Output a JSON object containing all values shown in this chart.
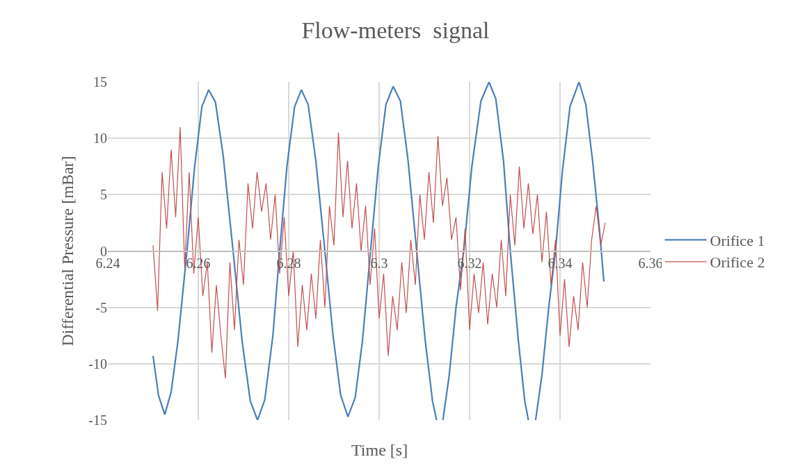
{
  "chart_data": {
    "type": "line",
    "title": "Flow-meters  signal",
    "xlabel": "Time [s]",
    "ylabel": "Differential Pressure [mBar]",
    "xlim": [
      6.24,
      6.36
    ],
    "xticks": [
      6.24,
      6.26,
      6.28,
      {
        "value": 6.3,
        "label": "6.3"
      },
      6.32,
      6.34,
      6.36
    ],
    "ylim": [
      -15,
      15
    ],
    "yticks": [
      -15,
      -10,
      -5,
      0,
      5,
      10,
      15
    ],
    "grid": true,
    "legend": "right",
    "marker": "none",
    "line_style": "solid",
    "series": [
      {
        "name": "Orifice 1",
        "color": "#4a7ebb",
        "x": [
          6.25,
          6.2512,
          6.2526,
          6.254,
          6.2555,
          6.2575,
          6.2592,
          6.2608,
          6.2623,
          6.2638,
          6.2655,
          6.2677,
          6.2697,
          6.2715,
          6.2731,
          6.2747,
          6.2765,
          6.278,
          6.2796,
          6.2813,
          6.2828,
          6.2843,
          6.286,
          6.288,
          6.2898,
          6.2915,
          6.2931,
          6.2947,
          6.2963,
          6.2981,
          6.2998,
          6.3015,
          6.3031,
          6.3047,
          6.3064,
          6.3083,
          6.3102,
          6.3118,
          6.3127,
          6.3134,
          6.3141,
          6.3155,
          6.317,
          6.3187,
          6.3205,
          6.3225,
          6.3243,
          6.3258,
          6.3275,
          6.329,
          6.3308,
          6.3322,
          6.333,
          6.3338,
          6.3346,
          6.336,
          6.3375,
          6.339,
          6.3405,
          6.3422,
          6.3442,
          6.3457,
          6.3472,
          6.3487,
          6.3497
        ],
        "values": [
          -9.3,
          -12.8,
          -14.5,
          -12.5,
          -8,
          0,
          7.5,
          12.8,
          14.3,
          13.2,
          8.5,
          0,
          -8,
          -13.3,
          -15,
          -13.2,
          -7.5,
          0,
          7.5,
          12.8,
          14.3,
          13,
          8,
          0,
          -7.5,
          -12.8,
          -14.7,
          -13,
          -8,
          0,
          7.5,
          13,
          14.6,
          13.3,
          8,
          0,
          -8,
          -13.3,
          -15,
          null,
          -15,
          -11,
          -5,
          0,
          7.5,
          13.3,
          15,
          13.5,
          8,
          0,
          -8,
          -13.3,
          -15,
          null,
          -15,
          -11,
          -5,
          0,
          7,
          12.8,
          15,
          13,
          8,
          2,
          -2.7
        ]
      },
      {
        "name": "Orifice 2",
        "color": "#c0504d",
        "x": [
          6.25,
          6.251,
          6.252,
          6.253,
          6.254,
          6.255,
          6.256,
          6.257,
          6.258,
          6.259,
          6.26,
          6.261,
          6.262,
          6.263,
          6.264,
          6.265,
          6.266,
          6.267,
          6.268,
          6.269,
          6.27,
          6.271,
          6.272,
          6.273,
          6.274,
          6.275,
          6.276,
          6.277,
          6.278,
          6.279,
          6.28,
          6.281,
          6.282,
          6.283,
          6.284,
          6.285,
          6.286,
          6.287,
          6.288,
          6.289,
          6.29,
          6.291,
          6.292,
          6.293,
          6.294,
          6.295,
          6.296,
          6.297,
          6.298,
          6.299,
          6.3,
          6.301,
          6.302,
          6.303,
          6.304,
          6.305,
          6.306,
          6.307,
          6.308,
          6.309,
          6.31,
          6.311,
          6.312,
          6.313,
          6.314,
          6.315,
          6.316,
          6.317,
          6.318,
          6.319,
          6.32,
          6.321,
          6.322,
          6.323,
          6.324,
          6.325,
          6.326,
          6.327,
          6.328,
          6.329,
          6.33,
          6.331,
          6.332,
          6.333,
          6.334,
          6.335,
          6.336,
          6.337,
          6.338,
          6.339,
          6.34,
          6.341,
          6.342,
          6.343,
          6.344,
          6.345,
          6.346,
          6.347,
          6.348,
          6.349,
          6.35
        ],
        "values": [
          0.5,
          -5.3,
          7,
          2,
          9,
          3,
          11,
          -1.5,
          7,
          -2,
          3,
          -4,
          -1,
          -9,
          -3,
          -7.5,
          -11.3,
          -1,
          -7,
          1,
          -3,
          6,
          2,
          7,
          3.5,
          6,
          1,
          5,
          -2,
          3,
          -4,
          0,
          -8.5,
          -3,
          -7,
          -2,
          -6,
          1,
          -5,
          4,
          0.5,
          10.5,
          3,
          8,
          2,
          6,
          0,
          4,
          -3,
          2,
          -6,
          -2,
          -9.3,
          -4,
          -7,
          -1,
          -5.5,
          1,
          -3,
          5,
          1,
          7,
          2.5,
          10.2,
          4,
          6.5,
          1,
          3,
          -3.5,
          2,
          -7,
          -2,
          -5.5,
          -1,
          -6.5,
          -2,
          -5,
          1,
          -4,
          5,
          0.5,
          7.5,
          2,
          6,
          1.5,
          5,
          -1,
          3.5,
          -3,
          1,
          -7.5,
          -2.5,
          -8.5,
          -4,
          -7,
          -1,
          -5,
          1,
          4,
          0.5,
          2.5
        ]
      }
    ]
  }
}
